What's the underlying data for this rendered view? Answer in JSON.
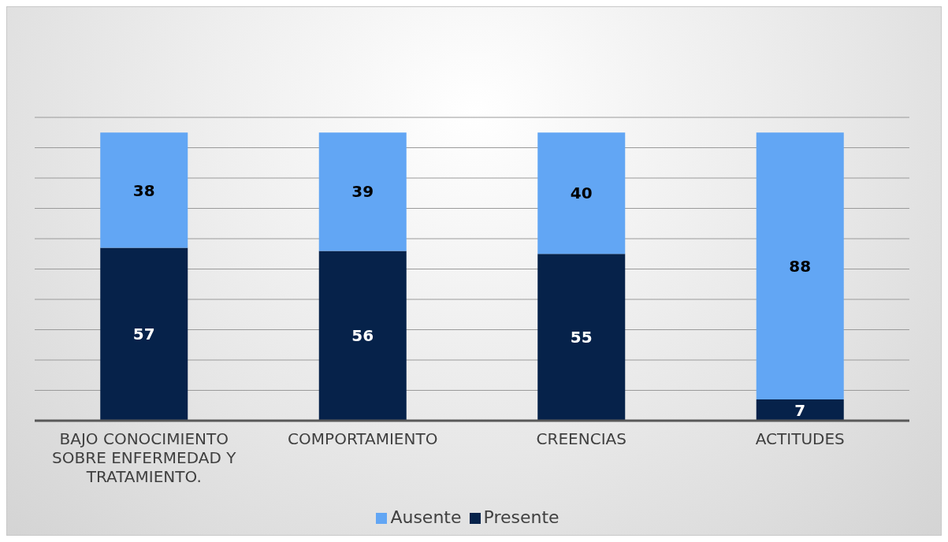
{
  "chart_data": {
    "type": "bar",
    "stacked": true,
    "categories": [
      "BAJO CONOCIMIENTO SOBRE ENFERMEDAD Y TRATAMIENTO.",
      "COMPORTAMIENTO",
      "CREENCIAS",
      "ACTITUDES"
    ],
    "series": [
      {
        "name": "Presente",
        "color": "#06224a",
        "values": [
          57,
          56,
          55,
          7
        ]
      },
      {
        "name": "Ausente",
        "color": "#62a6f4",
        "values": [
          38,
          39,
          40,
          88
        ]
      }
    ],
    "ylim": [
      0,
      100
    ],
    "yticks": [
      {
        "value": 0,
        "label": null
      },
      {
        "value": 10,
        "label": null
      },
      {
        "value": 20,
        "label": null
      },
      {
        "value": 30,
        "label": null
      },
      {
        "value": 40,
        "label": null
      },
      {
        "value": 50,
        "label": null
      },
      {
        "value": 60,
        "label": null
      },
      {
        "value": 70,
        "label": null
      },
      {
        "value": 80,
        "label": null
      },
      {
        "value": 90,
        "label": null
      },
      {
        "value": 100,
        "label": null
      }
    ],
    "tick_labels": "x",
    "grid": "y",
    "legend": "bottom",
    "data_labels": true
  }
}
